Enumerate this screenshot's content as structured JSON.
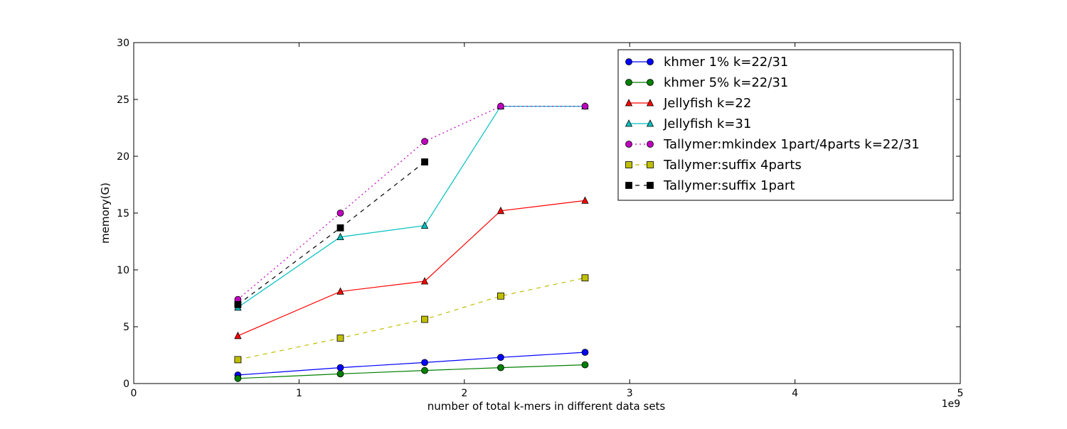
{
  "chart_data": {
    "type": "line",
    "title": "",
    "xlabel": "number of total k-mers in different data sets",
    "ylabel": "memory(G)",
    "x_offset_label": "1e9",
    "xlim": [
      0,
      5
    ],
    "ylim": [
      0,
      30
    ],
    "x_ticks": [
      0,
      1,
      2,
      3,
      4,
      5
    ],
    "y_ticks": [
      0,
      5,
      10,
      15,
      20,
      25,
      30
    ],
    "x_tick_labels": [
      "0",
      "1",
      "2",
      "3",
      "4",
      "5"
    ],
    "y_tick_labels": [
      "0",
      "5",
      "10",
      "15",
      "20",
      "25",
      "30"
    ],
    "grid": false,
    "legend_position": "top-right",
    "series": [
      {
        "name": "khmer 1% k=22/31",
        "color": "#0000ff",
        "marker": "circle",
        "dash": "solid",
        "x": [
          0.63,
          1.25,
          1.76,
          2.22,
          2.73
        ],
        "y": [
          0.75,
          1.4,
          1.85,
          2.3,
          2.75
        ]
      },
      {
        "name": "khmer 5% k=22/31",
        "color": "#008000",
        "marker": "circle",
        "dash": "solid",
        "x": [
          0.63,
          1.25,
          1.76,
          2.22,
          2.73
        ],
        "y": [
          0.45,
          0.85,
          1.15,
          1.4,
          1.65
        ]
      },
      {
        "name": "Jellyfish k=22",
        "color": "#ff0000",
        "marker": "triangle",
        "dash": "solid",
        "x": [
          0.63,
          1.25,
          1.76,
          2.22,
          2.73
        ],
        "y": [
          4.2,
          8.1,
          9.0,
          15.2,
          16.1
        ]
      },
      {
        "name": "Jellyfish k=31",
        "color": "#00bfbf",
        "marker": "triangle",
        "dash": "solid",
        "x": [
          0.63,
          1.25,
          1.76,
          2.22,
          2.73
        ],
        "y": [
          6.7,
          12.9,
          13.9,
          24.4,
          24.4
        ]
      },
      {
        "name": "Tallymer:mkindex 1part/4parts k=22/31",
        "color": "#bf00bf",
        "marker": "circle",
        "dash": "dotted",
        "x": [
          0.63,
          1.25,
          1.76,
          2.22,
          2.73
        ],
        "y": [
          7.4,
          15.0,
          21.3,
          24.4,
          24.4
        ]
      },
      {
        "name": "Tallymer:suffix 4parts",
        "color": "#bfbf00",
        "marker": "square",
        "dash": "dashed",
        "x": [
          0.63,
          1.25,
          1.76,
          2.22,
          2.73
        ],
        "y": [
          2.1,
          4.0,
          5.65,
          7.7,
          9.3
        ]
      },
      {
        "name": "Tallymer:suffix 1part",
        "color": "#000000",
        "marker": "square",
        "dash": "dashed",
        "x": [
          0.63,
          1.25,
          1.76
        ],
        "y": [
          6.95,
          13.7,
          19.5
        ]
      }
    ]
  }
}
